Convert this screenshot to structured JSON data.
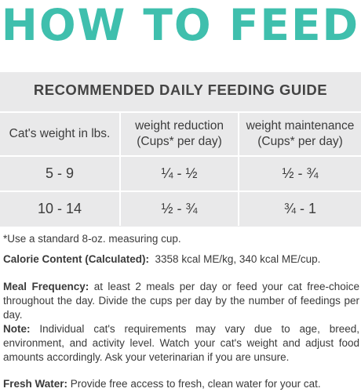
{
  "title": "HOW TO FEED",
  "guide": {
    "title": "RECOMMENDED DAILY FEEDING GUIDE",
    "headers": [
      "Cat's weight in lbs.",
      "weight reduction (Cups* per day)",
      "weight maintenance (Cups* per day)"
    ],
    "header_lines": [
      [
        "Cat's weight in lbs."
      ],
      [
        "weight reduction",
        "(Cups* per day)"
      ],
      [
        "weight maintenance",
        "(Cups* per day)"
      ]
    ],
    "rows": [
      [
        "5 - 9",
        "¼ - ½",
        "½ - ¾"
      ],
      [
        "10 - 14",
        "½ - ¾",
        "¾ - 1"
      ]
    ]
  },
  "footnote": "*Use a standard 8-oz. measuring cup.",
  "calorie": {
    "label": "Calorie Content (Calculated):",
    "value": "3358 kcal ME/kg, 340 kcal ME/cup."
  },
  "meal": {
    "label": "Meal Frequency:",
    "text": "at least 2 meals per day or feed your cat free-choice throughout the day. Divide the cups per day by the number of feedings per day."
  },
  "note": {
    "label": "Note:",
    "text": "Individual cat's requirements may vary due to age, breed, environment, and activity level. Watch your cat's weight and adjust food amounts accordingly. Ask your veterinarian if you are unsure."
  },
  "water": {
    "label": "Fresh Water:",
    "text": "Provide free access to fresh, clean water for your cat."
  },
  "colors": {
    "title": "#3fbfad",
    "panel": "#e9e9ea"
  }
}
